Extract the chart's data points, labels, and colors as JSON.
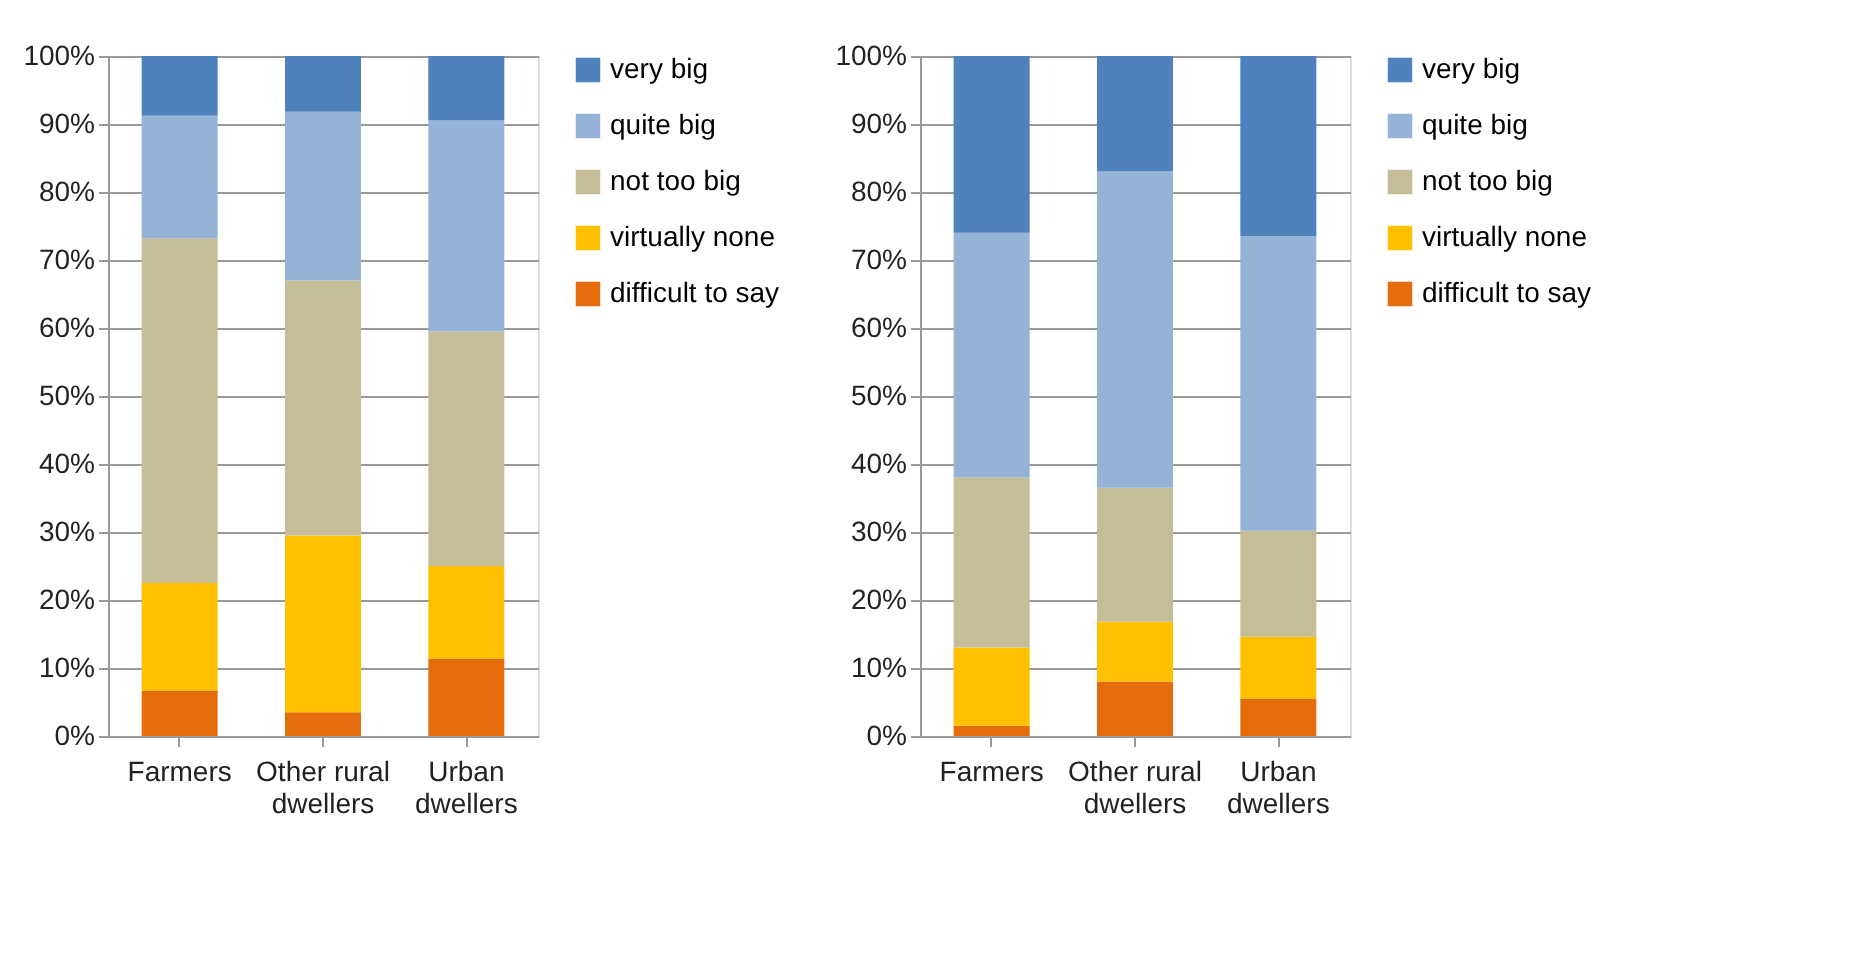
{
  "chart_data": [
    {
      "type": "bar",
      "stacked": true,
      "categories": [
        "Farmers",
        "Other rural dwellers",
        "Urban dwellers"
      ],
      "series": [
        {
          "name": "difficult to say",
          "color": "#e46c0a",
          "values": [
            6.7,
            3.5,
            11.4
          ]
        },
        {
          "name": "virtually none",
          "color": "#ffc000",
          "values": [
            15.8,
            26,
            13.6
          ]
        },
        {
          "name": "not too big",
          "color": "#c4bd97",
          "values": [
            50.7,
            37.5,
            34.5
          ]
        },
        {
          "name": "quite big",
          "color": "#95b3d7",
          "values": [
            18,
            24.8,
            31
          ]
        },
        {
          "name": "very big",
          "color": "#4f81bd",
          "values": [
            8.8,
            8.2,
            9.5
          ]
        }
      ],
      "ylim": [
        0,
        100
      ],
      "yticks": [
        {
          "value": 0,
          "label": "0%"
        },
        {
          "value": 10,
          "label": "10%"
        },
        {
          "value": 20,
          "label": "20%"
        },
        {
          "value": 30,
          "label": "30%"
        },
        {
          "value": 40,
          "label": "40%"
        },
        {
          "value": 50,
          "label": "50%"
        },
        {
          "value": 60,
          "label": "60%"
        },
        {
          "value": 70,
          "label": "70%"
        },
        {
          "value": 80,
          "label": "80%"
        },
        {
          "value": 90,
          "label": "90%"
        },
        {
          "value": 100,
          "label": "100%"
        }
      ],
      "grid": "y",
      "legend": "right"
    },
    {
      "type": "bar",
      "stacked": true,
      "categories": [
        "Farmers",
        "Other rural dwellers",
        "Urban dwellers"
      ],
      "series": [
        {
          "name": "difficult to say",
          "color": "#e46c0a",
          "values": [
            1.5,
            8,
            5.5
          ]
        },
        {
          "name": "virtually none",
          "color": "#ffc000",
          "values": [
            11.5,
            8.8,
            9.1
          ]
        },
        {
          "name": "not too big",
          "color": "#c4bd97",
          "values": [
            25,
            19.7,
            15.6
          ]
        },
        {
          "name": "quite big",
          "color": "#95b3d7",
          "values": [
            36,
            46.5,
            43.3
          ]
        },
        {
          "name": "very big",
          "color": "#4f81bd",
          "values": [
            26,
            17,
            26.5
          ]
        }
      ],
      "ylim": [
        0,
        100
      ],
      "yticks": [
        {
          "value": 0,
          "label": "0%"
        },
        {
          "value": 10,
          "label": "10%"
        },
        {
          "value": 20,
          "label": "20%"
        },
        {
          "value": 30,
          "label": "30%"
        },
        {
          "value": 40,
          "label": "40%"
        },
        {
          "value": 50,
          "label": "50%"
        },
        {
          "value": 60,
          "label": "60%"
        },
        {
          "value": 70,
          "label": "70%"
        },
        {
          "value": 80,
          "label": "80%"
        },
        {
          "value": 90,
          "label": "90%"
        },
        {
          "value": 100,
          "label": "100%"
        }
      ],
      "grid": "y",
      "legend": "right"
    }
  ]
}
